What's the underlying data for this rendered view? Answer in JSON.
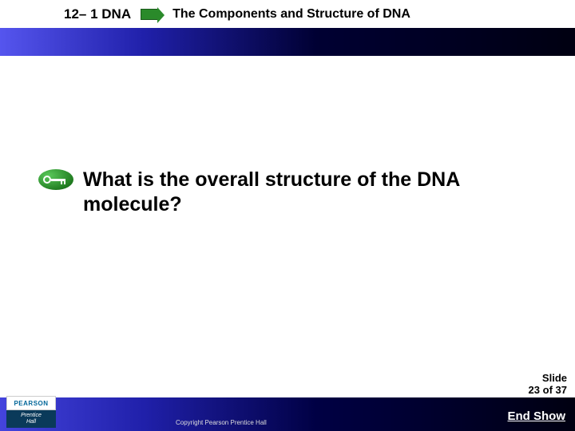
{
  "header": {
    "section_label": "12– 1 DNA",
    "section_title": "The Components and Structure of DNA"
  },
  "gradient": {
    "start_color": "#5555ee",
    "mid_color": "#2020aa",
    "end_color": "#000011"
  },
  "content": {
    "key_icon_color": "#2a8a2a",
    "question": "What is the overall structure of the DNA molecule?",
    "question_fontsize": 25,
    "question_color": "#000000"
  },
  "footer": {
    "slide_prefix": "Slide",
    "slide_current": "23",
    "slide_of": "of",
    "slide_total": "37",
    "logo_top": "PEARSON",
    "logo_line1": "Prentice",
    "logo_line2": "Hall",
    "copyright": "Copyright Pearson Prentice Hall",
    "end_show": "End Show"
  },
  "colors": {
    "background": "#ffffff",
    "text": "#000000",
    "footer_text": "#ffffff"
  }
}
